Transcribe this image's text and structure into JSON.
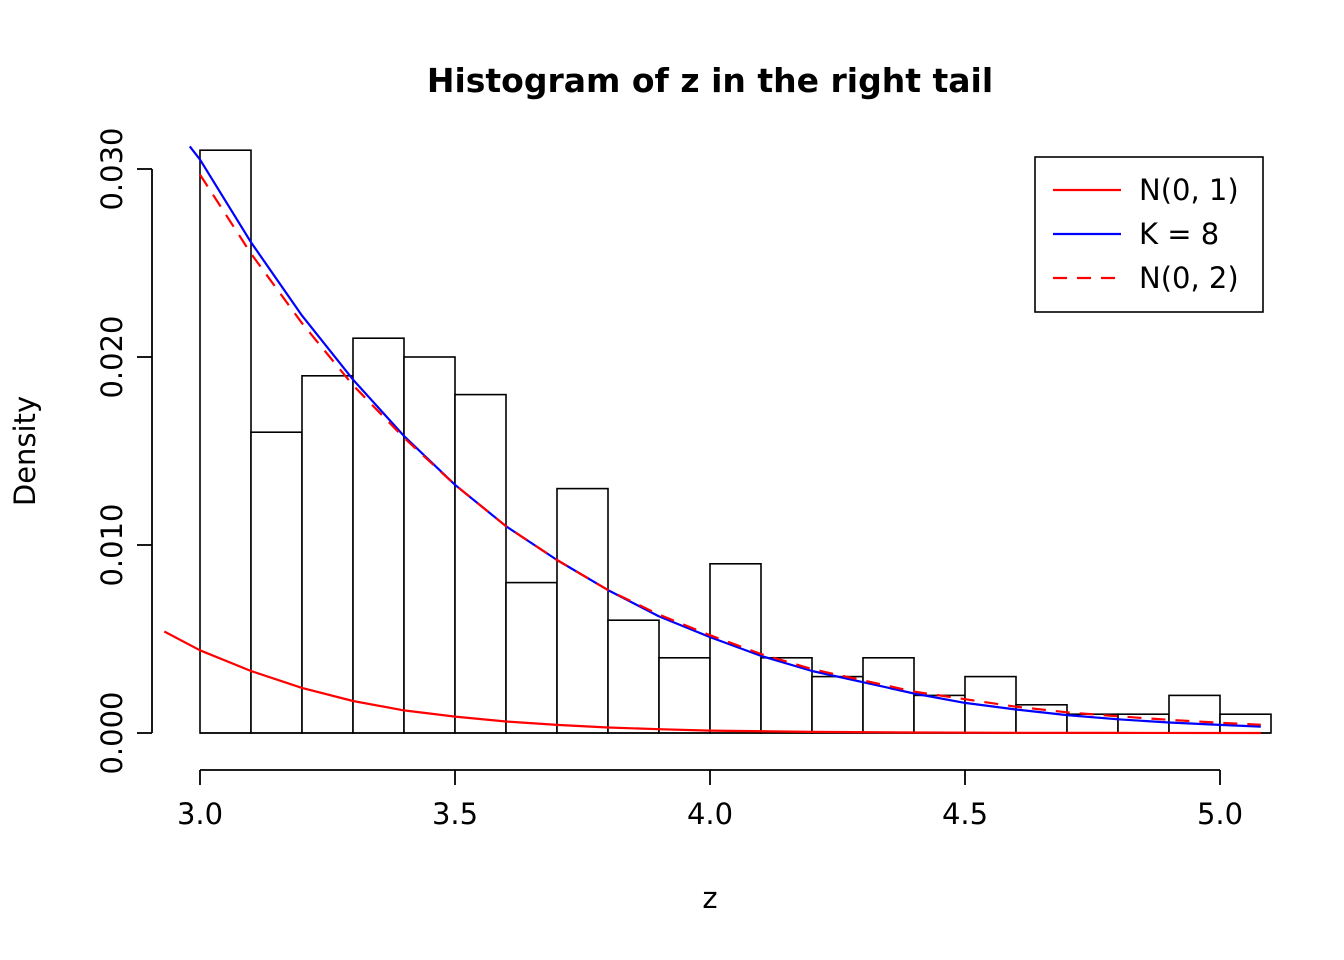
{
  "page": {
    "background_color": "#ffffff"
  },
  "chart_data": {
    "type": "bar",
    "subtype": "histogram-with-density-curves",
    "title": "Histogram of z in the right tail",
    "xlabel": "z",
    "ylabel": "Density",
    "xlim": [
      2.92,
      5.08
    ],
    "ylim": [
      0,
      0.0322
    ],
    "grid": false,
    "x_ticks": {
      "values": [
        3.0,
        3.5,
        4.0,
        4.5,
        5.0
      ],
      "labels": [
        "3.0",
        "3.5",
        "4.0",
        "4.5",
        "5.0"
      ]
    },
    "y_ticks": {
      "values": [
        0.0,
        0.01,
        0.02,
        0.03
      ],
      "labels": [
        "0.000",
        "0.010",
        "0.020",
        "0.030"
      ]
    },
    "histogram": {
      "bin_start": 3.0,
      "bin_width": 0.1,
      "bar_fill": "#ffffff",
      "bar_border": "#000000",
      "densities": [
        0.031,
        0.016,
        0.019,
        0.021,
        0.02,
        0.018,
        0.008,
        0.013,
        0.006,
        0.004,
        0.009,
        0.004,
        0.003,
        0.004,
        0.002,
        0.003,
        0.0015,
        0.001,
        0.001,
        0.002,
        0.001
      ]
    },
    "curves": [
      {
        "name": "N(0, 1)",
        "color": "#ff0000",
        "dash": false,
        "points": [
          [
            2.93,
            0.0054
          ],
          [
            3.0,
            0.0044
          ],
          [
            3.1,
            0.0033
          ],
          [
            3.2,
            0.0024
          ],
          [
            3.3,
            0.0017
          ],
          [
            3.4,
            0.0012
          ],
          [
            3.5,
            0.00087
          ],
          [
            3.6,
            0.00061
          ],
          [
            3.7,
            0.00043
          ],
          [
            3.8,
            0.00029
          ],
          [
            3.9,
            0.0002
          ],
          [
            4.0,
            0.00013
          ],
          [
            4.2,
            6e-05
          ],
          [
            4.4,
            2.5e-05
          ],
          [
            4.6,
            1e-05
          ],
          [
            4.8,
            4e-06
          ],
          [
            5.08,
            2e-06
          ]
        ]
      },
      {
        "name": "K = 8",
        "color": "#0000ff",
        "dash": false,
        "points": [
          [
            2.98,
            0.0312
          ],
          [
            3.0,
            0.0305
          ],
          [
            3.1,
            0.0261
          ],
          [
            3.2,
            0.0222
          ],
          [
            3.3,
            0.0188
          ],
          [
            3.4,
            0.0158
          ],
          [
            3.5,
            0.0132
          ],
          [
            3.6,
            0.011
          ],
          [
            3.7,
            0.0092
          ],
          [
            3.8,
            0.0076
          ],
          [
            3.9,
            0.0062
          ],
          [
            4.0,
            0.0051
          ],
          [
            4.1,
            0.0041
          ],
          [
            4.2,
            0.0033
          ],
          [
            4.3,
            0.0027
          ],
          [
            4.4,
            0.0021
          ],
          [
            4.5,
            0.0016
          ],
          [
            4.6,
            0.00125
          ],
          [
            4.7,
            0.00095
          ],
          [
            4.8,
            0.00073
          ],
          [
            4.9,
            0.00056
          ],
          [
            5.0,
            0.00043
          ],
          [
            5.08,
            0.00034
          ]
        ]
      },
      {
        "name": "N(0, 2)",
        "color": "#ff0000",
        "dash": true,
        "points": [
          [
            3.0,
            0.0297
          ],
          [
            3.1,
            0.0255
          ],
          [
            3.2,
            0.0218
          ],
          [
            3.3,
            0.0185
          ],
          [
            3.4,
            0.0157
          ],
          [
            3.5,
            0.0132
          ],
          [
            3.6,
            0.011
          ],
          [
            3.7,
            0.0092
          ],
          [
            3.8,
            0.0076
          ],
          [
            3.9,
            0.0063
          ],
          [
            4.0,
            0.0052
          ],
          [
            4.1,
            0.0042
          ],
          [
            4.2,
            0.0034
          ],
          [
            4.3,
            0.0028
          ],
          [
            4.4,
            0.0022
          ],
          [
            4.5,
            0.0018
          ],
          [
            4.6,
            0.0014
          ],
          [
            4.7,
            0.0011
          ],
          [
            4.8,
            0.00089
          ],
          [
            4.9,
            0.0007
          ],
          [
            5.0,
            0.00054
          ],
          [
            5.08,
            0.00044
          ]
        ]
      }
    ],
    "legend": {
      "position": "top-right",
      "entries": [
        {
          "label": "N(0, 1)",
          "color": "#ff0000",
          "dash": false
        },
        {
          "label": "K = 8",
          "color": "#0000ff",
          "dash": false
        },
        {
          "label": "N(0, 2)",
          "color": "#ff0000",
          "dash": true
        }
      ]
    }
  }
}
